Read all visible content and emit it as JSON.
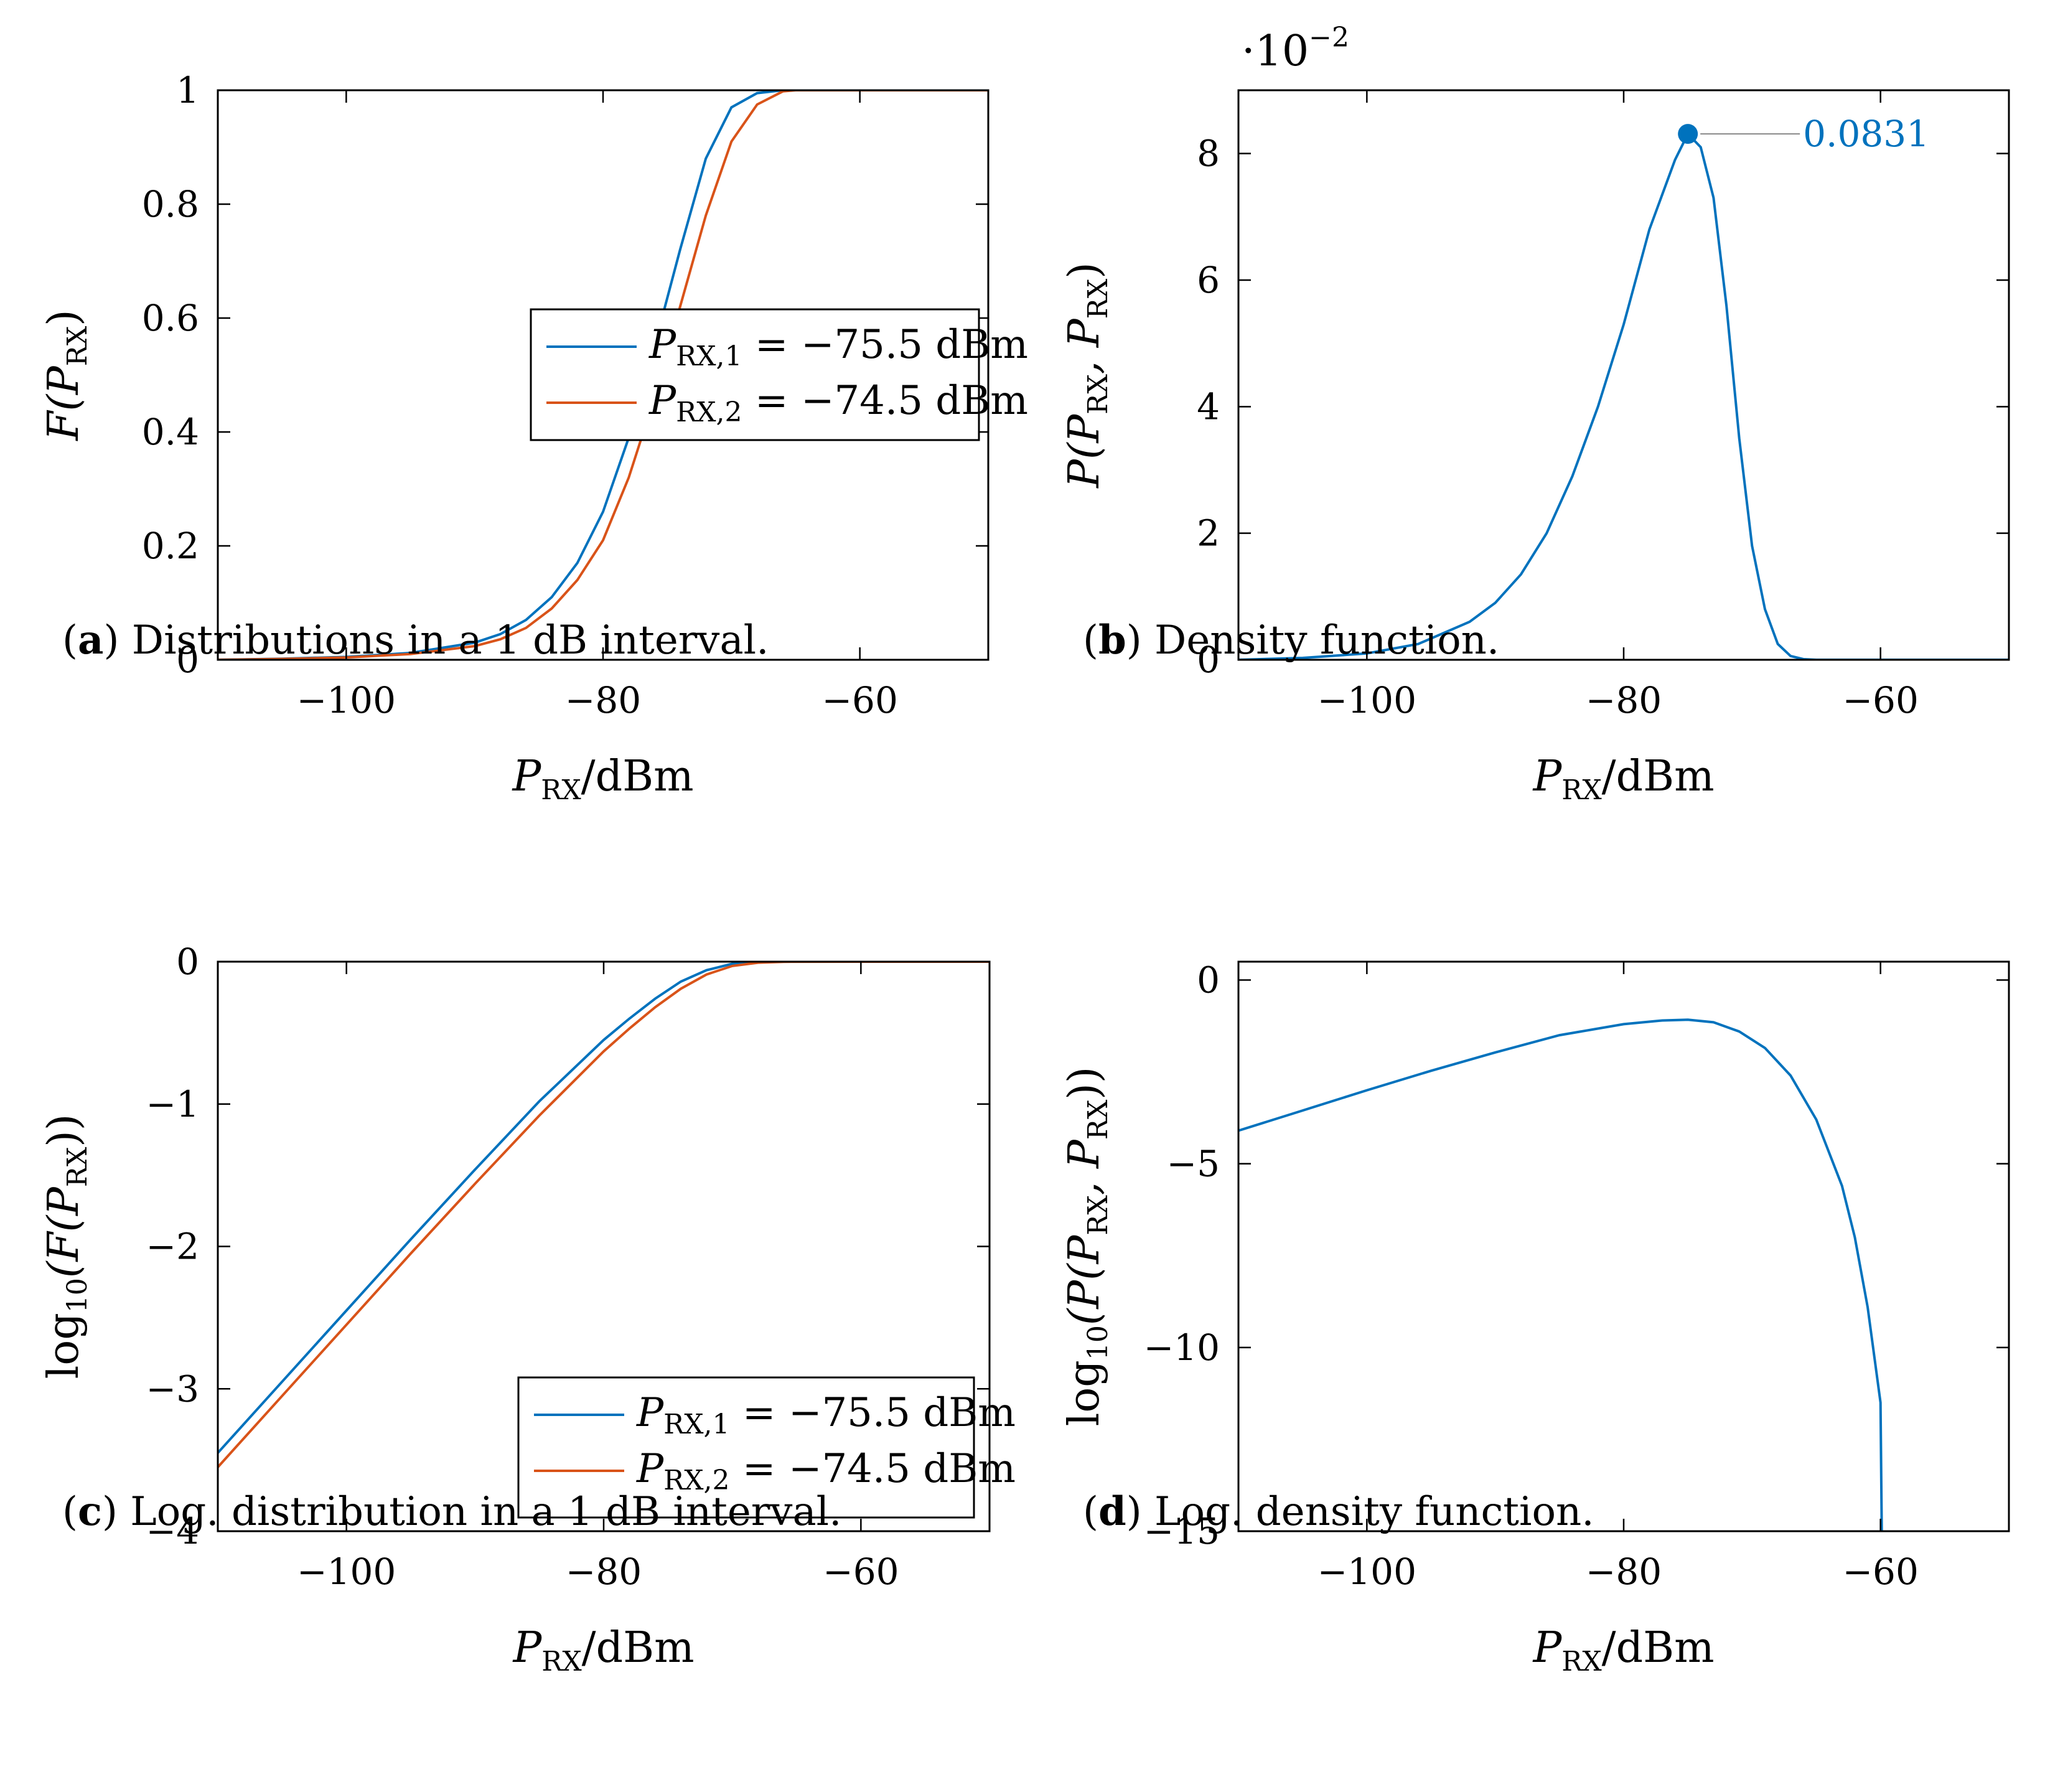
{
  "chart_data": [
    {
      "id": "a",
      "type": "line",
      "caption_letter": "a",
      "caption_text": "Distributions in a 1 dB interval.",
      "xlabel": {
        "main": "P",
        "sub": "RX",
        "unit": "/dBm"
      },
      "ylabel": {
        "text": "F(P",
        "sub": "RX",
        "close": ")"
      },
      "xlim": [
        -110,
        -50
      ],
      "ylim": [
        0,
        1
      ],
      "xticks": [
        -100,
        -80,
        -60
      ],
      "xtick_labels": [
        "−100",
        "−80",
        "−60"
      ],
      "yticks": [
        0,
        0.2,
        0.4,
        0.6,
        0.8,
        1
      ],
      "ytick_labels": [
        "0",
        "0.2",
        "0.4",
        "0.6",
        "0.8",
        "1"
      ],
      "legend": {
        "position": "center-right"
      },
      "series": [
        {
          "name": "P_RX,1 = −75.5 dBm",
          "label_main": "P",
          "label_sub": "RX,1",
          "label_rest": " = −75.5 dBm",
          "color": "#0072bd",
          "x": [
            -110,
            -105,
            -100,
            -95,
            -90,
            -88,
            -86,
            -84,
            -82,
            -80,
            -78,
            -76,
            -74,
            -72,
            -70,
            -68,
            -66,
            -60,
            -50
          ],
          "y": [
            0,
            0.002,
            0.005,
            0.012,
            0.03,
            0.045,
            0.07,
            0.11,
            0.17,
            0.26,
            0.39,
            0.55,
            0.72,
            0.88,
            0.97,
            0.995,
            1,
            1,
            1
          ]
        },
        {
          "name": "P_RX,2 = −74.5 dBm",
          "label_main": "P",
          "label_sub": "RX,2",
          "label_rest": " = −74.5 dBm",
          "color": "#d95319",
          "x": [
            -110,
            -105,
            -100,
            -95,
            -90,
            -88,
            -86,
            -84,
            -82,
            -80,
            -78,
            -76,
            -74,
            -72,
            -70,
            -68,
            -66,
            -65,
            -60,
            -50
          ],
          "y": [
            0,
            0.0015,
            0.004,
            0.01,
            0.024,
            0.036,
            0.056,
            0.09,
            0.14,
            0.21,
            0.32,
            0.46,
            0.62,
            0.78,
            0.91,
            0.975,
            0.998,
            1,
            1,
            1
          ]
        }
      ]
    },
    {
      "id": "b",
      "type": "line",
      "caption_letter": "b",
      "caption_text": "Density function.",
      "xlabel": {
        "main": "P",
        "sub": "RX",
        "unit": "/dBm"
      },
      "ylabel": {
        "text": "P(P",
        "sub": "RX",
        "mid": ", P",
        "sub2": "RX",
        "close": ")"
      },
      "scale_label": "·10",
      "scale_exp": "−2",
      "xlim": [
        -110,
        -50
      ],
      "ylim": [
        0,
        9
      ],
      "xticks": [
        -100,
        -80,
        -60
      ],
      "xtick_labels": [
        "−100",
        "−80",
        "−60"
      ],
      "yticks": [
        0,
        2,
        4,
        6,
        8
      ],
      "ytick_labels": [
        "0",
        "2",
        "4",
        "6",
        "8"
      ],
      "annotation": {
        "x": -75,
        "y": 8.31,
        "text": "0.0831",
        "color": "#0072bd"
      },
      "series": [
        {
          "name": "density",
          "color": "#0072bd",
          "x": [
            -110,
            -105,
            -100,
            -96,
            -92,
            -90,
            -88,
            -86,
            -84,
            -82,
            -80,
            -78,
            -76,
            -75,
            -74,
            -73,
            -72,
            -71,
            -70,
            -69,
            -68,
            -67,
            -66,
            -65,
            -60,
            -50
          ],
          "y": [
            0,
            0.03,
            0.1,
            0.25,
            0.6,
            0.9,
            1.35,
            2.0,
            2.9,
            4.0,
            5.3,
            6.8,
            7.9,
            8.31,
            8.1,
            7.3,
            5.6,
            3.5,
            1.8,
            0.8,
            0.25,
            0.06,
            0.01,
            0,
            0,
            0
          ]
        }
      ]
    },
    {
      "id": "c",
      "type": "line",
      "caption_letter": "c",
      "caption_text": "Log. distribution in a 1 dB interval.",
      "xlabel": {
        "main": "P",
        "sub": "RX",
        "unit": "/dBm"
      },
      "ylabel": {
        "text": "log",
        "sub10": "10",
        "rest": "(F(P",
        "sub": "RX",
        "close": "))"
      },
      "xlim": [
        -110,
        -50
      ],
      "ylim": [
        -4,
        0
      ],
      "xticks": [
        -100,
        -80,
        -60
      ],
      "xtick_labels": [
        "−100",
        "−80",
        "−60"
      ],
      "yticks": [
        -4,
        -3,
        -2,
        -1,
        0
      ],
      "ytick_labels": [
        "−4",
        "−3",
        "−2",
        "−1",
        "0"
      ],
      "legend": {
        "position": "bottom-right"
      },
      "series": [
        {
          "name": "P_RX,1 = −75.5 dBm",
          "label_main": "P",
          "label_sub": "RX,1",
          "label_rest": " = −75.5 dBm",
          "color": "#0072bd",
          "x": [
            -110,
            -105,
            -100,
            -95,
            -90,
            -85,
            -80,
            -78,
            -76,
            -74,
            -72,
            -70,
            -68,
            -66,
            -60,
            -50
          ],
          "y": [
            -3.45,
            -2.95,
            -2.45,
            -1.95,
            -1.46,
            -0.98,
            -0.55,
            -0.4,
            -0.26,
            -0.14,
            -0.06,
            -0.015,
            -0.002,
            0,
            0,
            0
          ]
        },
        {
          "name": "P_RX,2 = −74.5 dBm",
          "label_main": "P",
          "label_sub": "RX,2",
          "label_rest": " = −74.5 dBm",
          "color": "#d95319",
          "x": [
            -110,
            -105,
            -100,
            -95,
            -90,
            -85,
            -80,
            -78,
            -76,
            -74,
            -72,
            -70,
            -68,
            -66,
            -60,
            -50
          ],
          "y": [
            -3.55,
            -3.05,
            -2.55,
            -2.05,
            -1.56,
            -1.08,
            -0.63,
            -0.47,
            -0.32,
            -0.19,
            -0.09,
            -0.03,
            -0.007,
            -0.001,
            0,
            0
          ]
        }
      ]
    },
    {
      "id": "d",
      "type": "line",
      "caption_letter": "d",
      "caption_text": "Log. density function.",
      "xlabel": {
        "main": "P",
        "sub": "RX",
        "unit": "/dBm"
      },
      "ylabel": {
        "text": "log",
        "sub10": "10",
        "rest": "(P(P",
        "sub": "RX",
        "mid": ", P",
        "sub2": "RX",
        "close": "))"
      },
      "xlim": [
        -110,
        -50
      ],
      "ylim": [
        -15,
        0.5
      ],
      "xticks": [
        -100,
        -80,
        -60
      ],
      "xtick_labels": [
        "−100",
        "−80",
        "−60"
      ],
      "yticks": [
        -15,
        -10,
        -5,
        0
      ],
      "ytick_labels": [
        "−15",
        "−10",
        "−5",
        "0"
      ],
      "series": [
        {
          "name": "log density",
          "color": "#0072bd",
          "x": [
            -110,
            -105,
            -100,
            -95,
            -90,
            -85,
            -80,
            -77,
            -75,
            -73,
            -71,
            -69,
            -67,
            -65,
            -63,
            -62,
            -61,
            -60,
            -59.9
          ],
          "y": [
            -4.1,
            -3.55,
            -3.0,
            -2.47,
            -1.97,
            -1.5,
            -1.2,
            -1.1,
            -1.08,
            -1.15,
            -1.4,
            -1.85,
            -2.6,
            -3.8,
            -5.6,
            -7.0,
            -8.9,
            -11.5,
            -15
          ]
        }
      ]
    }
  ]
}
